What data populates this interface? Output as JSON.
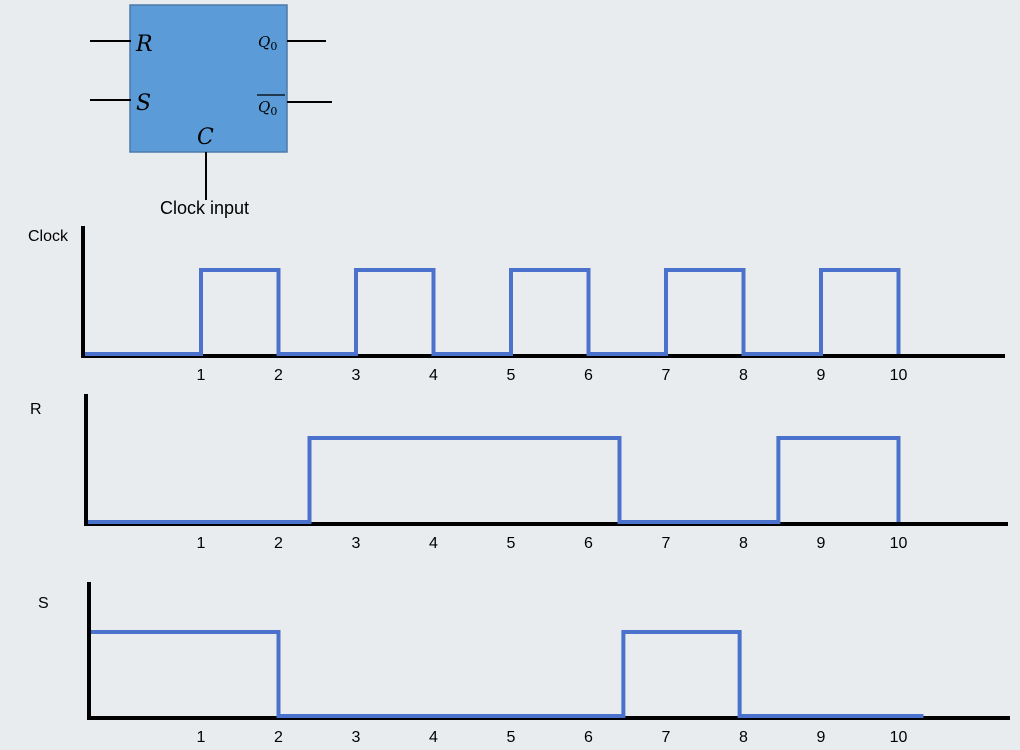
{
  "block": {
    "input_r": "R",
    "input_s": "S",
    "input_c": "C",
    "output_q": "Q",
    "output_q_sub": "0",
    "output_qbar": "Q",
    "output_qbar_sub": "0",
    "clock_caption": "Clock input",
    "fill_color": "#5a9bd8",
    "border_color": "#4d79a8"
  },
  "colors": {
    "signal": "#4a72cc",
    "axis": "#000000",
    "background": "#e9ecee"
  },
  "chart_data": {
    "type": "line",
    "x_ticks": [
      "1",
      "2",
      "3",
      "4",
      "5",
      "6",
      "7",
      "8",
      "9",
      "10"
    ],
    "series": [
      {
        "name": "Clock",
        "high_intervals": [
          [
            1,
            2
          ],
          [
            3,
            4
          ],
          [
            5,
            6
          ],
          [
            7,
            8
          ],
          [
            9,
            10
          ]
        ]
      },
      {
        "name": "R",
        "high_intervals": [
          [
            2.4,
            6.4
          ],
          [
            8.45,
            10
          ]
        ]
      },
      {
        "name": "S",
        "high_intervals": [
          [
            0,
            2
          ],
          [
            6.45,
            7.95
          ]
        ]
      }
    ]
  }
}
